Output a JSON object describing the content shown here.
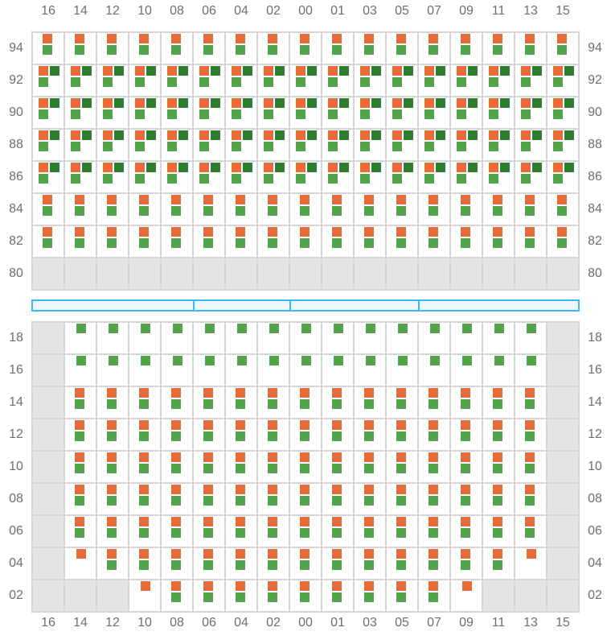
{
  "colors": {
    "orange": "#e36c39",
    "green": "#53a34a",
    "dark_green": "#2e7d32",
    "disabled": "#e4e4e6",
    "border": "#d4d4d8",
    "bar": "#3ab8f0"
  },
  "cell_codes": {
    "X": "disabled",
    "V": "orange+green",
    "T": "orange+dark-green+green",
    "G": "green",
    "O": "orange"
  },
  "columns": [
    "16",
    "14",
    "12",
    "10",
    "08",
    "06",
    "04",
    "02",
    "00",
    "01",
    "03",
    "05",
    "07",
    "09",
    "11",
    "13",
    "15"
  ],
  "top_section": {
    "rows": [
      {
        "label": "94",
        "cells": "VVVVVVVVVVVVVVVVV"
      },
      {
        "label": "92",
        "cells": "TTTTTTTTTTTTTTTTT"
      },
      {
        "label": "90",
        "cells": "TTTTTTTTTTTTTTTTT"
      },
      {
        "label": "88",
        "cells": "TTTTTTTTTTTTTTTTT"
      },
      {
        "label": "86",
        "cells": "TTTTTTTTTTTTTTTTT"
      },
      {
        "label": "84",
        "cells": "VVVVVVVVVVVVVVVVV"
      },
      {
        "label": "82",
        "cells": "VVVVVVVVVVVVVVVVV"
      },
      {
        "label": "80",
        "cells": "XXXXXXXXXXXXXXXXX"
      }
    ]
  },
  "divider_bar": {
    "segments": 4
  },
  "bottom_section": {
    "rows": [
      {
        "label": "18",
        "cells": "XGGGGGGGGGGGGGGGX"
      },
      {
        "label": "16",
        "cells": "XGGGGGGGGGGGGGGGX"
      },
      {
        "label": "14",
        "cells": "XVVVVVVVVVVVVVVVX"
      },
      {
        "label": "12",
        "cells": "XVVVVVVVVVVVVVVVX"
      },
      {
        "label": "10",
        "cells": "XVVVVVVVVVVVVVVVX"
      },
      {
        "label": "08",
        "cells": "XVVVVVVVVVVVVVVVX"
      },
      {
        "label": "06",
        "cells": "XVVVVVVVVVVVVVVVX"
      },
      {
        "label": "04",
        "cells": "XOVVVVVVVVVVVVVOX"
      },
      {
        "label": "02",
        "cells": "XXXOVVVVVVVVVOXXX"
      }
    ]
  }
}
